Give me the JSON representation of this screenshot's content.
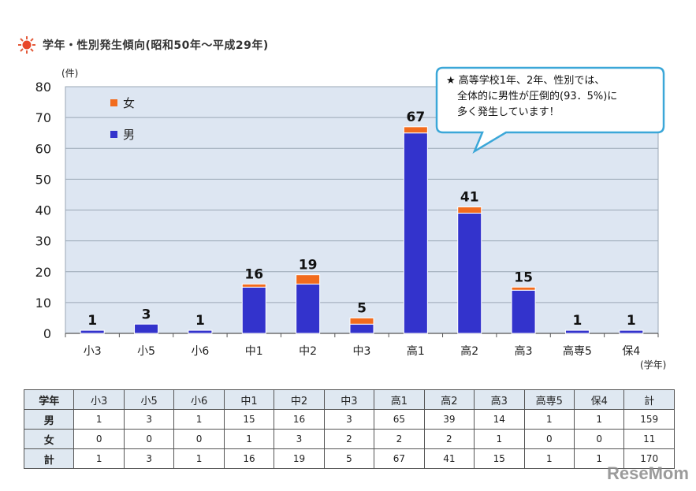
{
  "title": "学年・性別発生傾向(昭和50年〜平成29年)",
  "callout": {
    "lines": [
      "★ 高等学校1年、2年、性別では、",
      "全体的に男性が圧倒的(93．5%)に",
      "多く発生しています！"
    ]
  },
  "watermark": "ReseMom",
  "colors": {
    "male": "#3333cc",
    "female": "#f26b1d",
    "plot_bg": "#dde6f2",
    "callout_border": "#3ba7d8"
  },
  "chart_data": {
    "type": "bar",
    "stacked": true,
    "categories": [
      "小3",
      "小5",
      "小6",
      "中1",
      "中2",
      "中3",
      "高1",
      "高2",
      "高3",
      "高専5",
      "保4"
    ],
    "series": [
      {
        "name": "男",
        "values": [
          1,
          3,
          1,
          15,
          16,
          3,
          65,
          39,
          14,
          1,
          1
        ]
      },
      {
        "name": "女",
        "values": [
          0,
          0,
          0,
          1,
          3,
          2,
          2,
          2,
          1,
          0,
          0
        ]
      }
    ],
    "totals": [
      "1",
      "3",
      "1",
      "16",
      "19",
      "5",
      "67",
      "41",
      "15",
      "1",
      "1"
    ],
    "ylabel": "(件)",
    "xlabel": "(学年)",
    "ylim": [
      0,
      80
    ],
    "yticks": [
      "0",
      "10",
      "20",
      "30",
      "40",
      "50",
      "60",
      "70",
      "80"
    ],
    "grid": true,
    "legend_position": "top-left"
  },
  "table": {
    "headers": [
      "学年",
      "小3",
      "小5",
      "小6",
      "中1",
      "中2",
      "中3",
      "高1",
      "高2",
      "高3",
      "高専5",
      "保4",
      "計"
    ],
    "rows": [
      {
        "label": "男",
        "cells": [
          "1",
          "3",
          "1",
          "15",
          "16",
          "3",
          "65",
          "39",
          "14",
          "1",
          "1",
          "159"
        ]
      },
      {
        "label": "女",
        "cells": [
          "0",
          "0",
          "0",
          "1",
          "3",
          "2",
          "2",
          "2",
          "1",
          "0",
          "0",
          "11"
        ]
      },
      {
        "label": "計",
        "cells": [
          "1",
          "3",
          "1",
          "16",
          "19",
          "5",
          "67",
          "41",
          "15",
          "1",
          "1",
          "170"
        ]
      }
    ]
  }
}
